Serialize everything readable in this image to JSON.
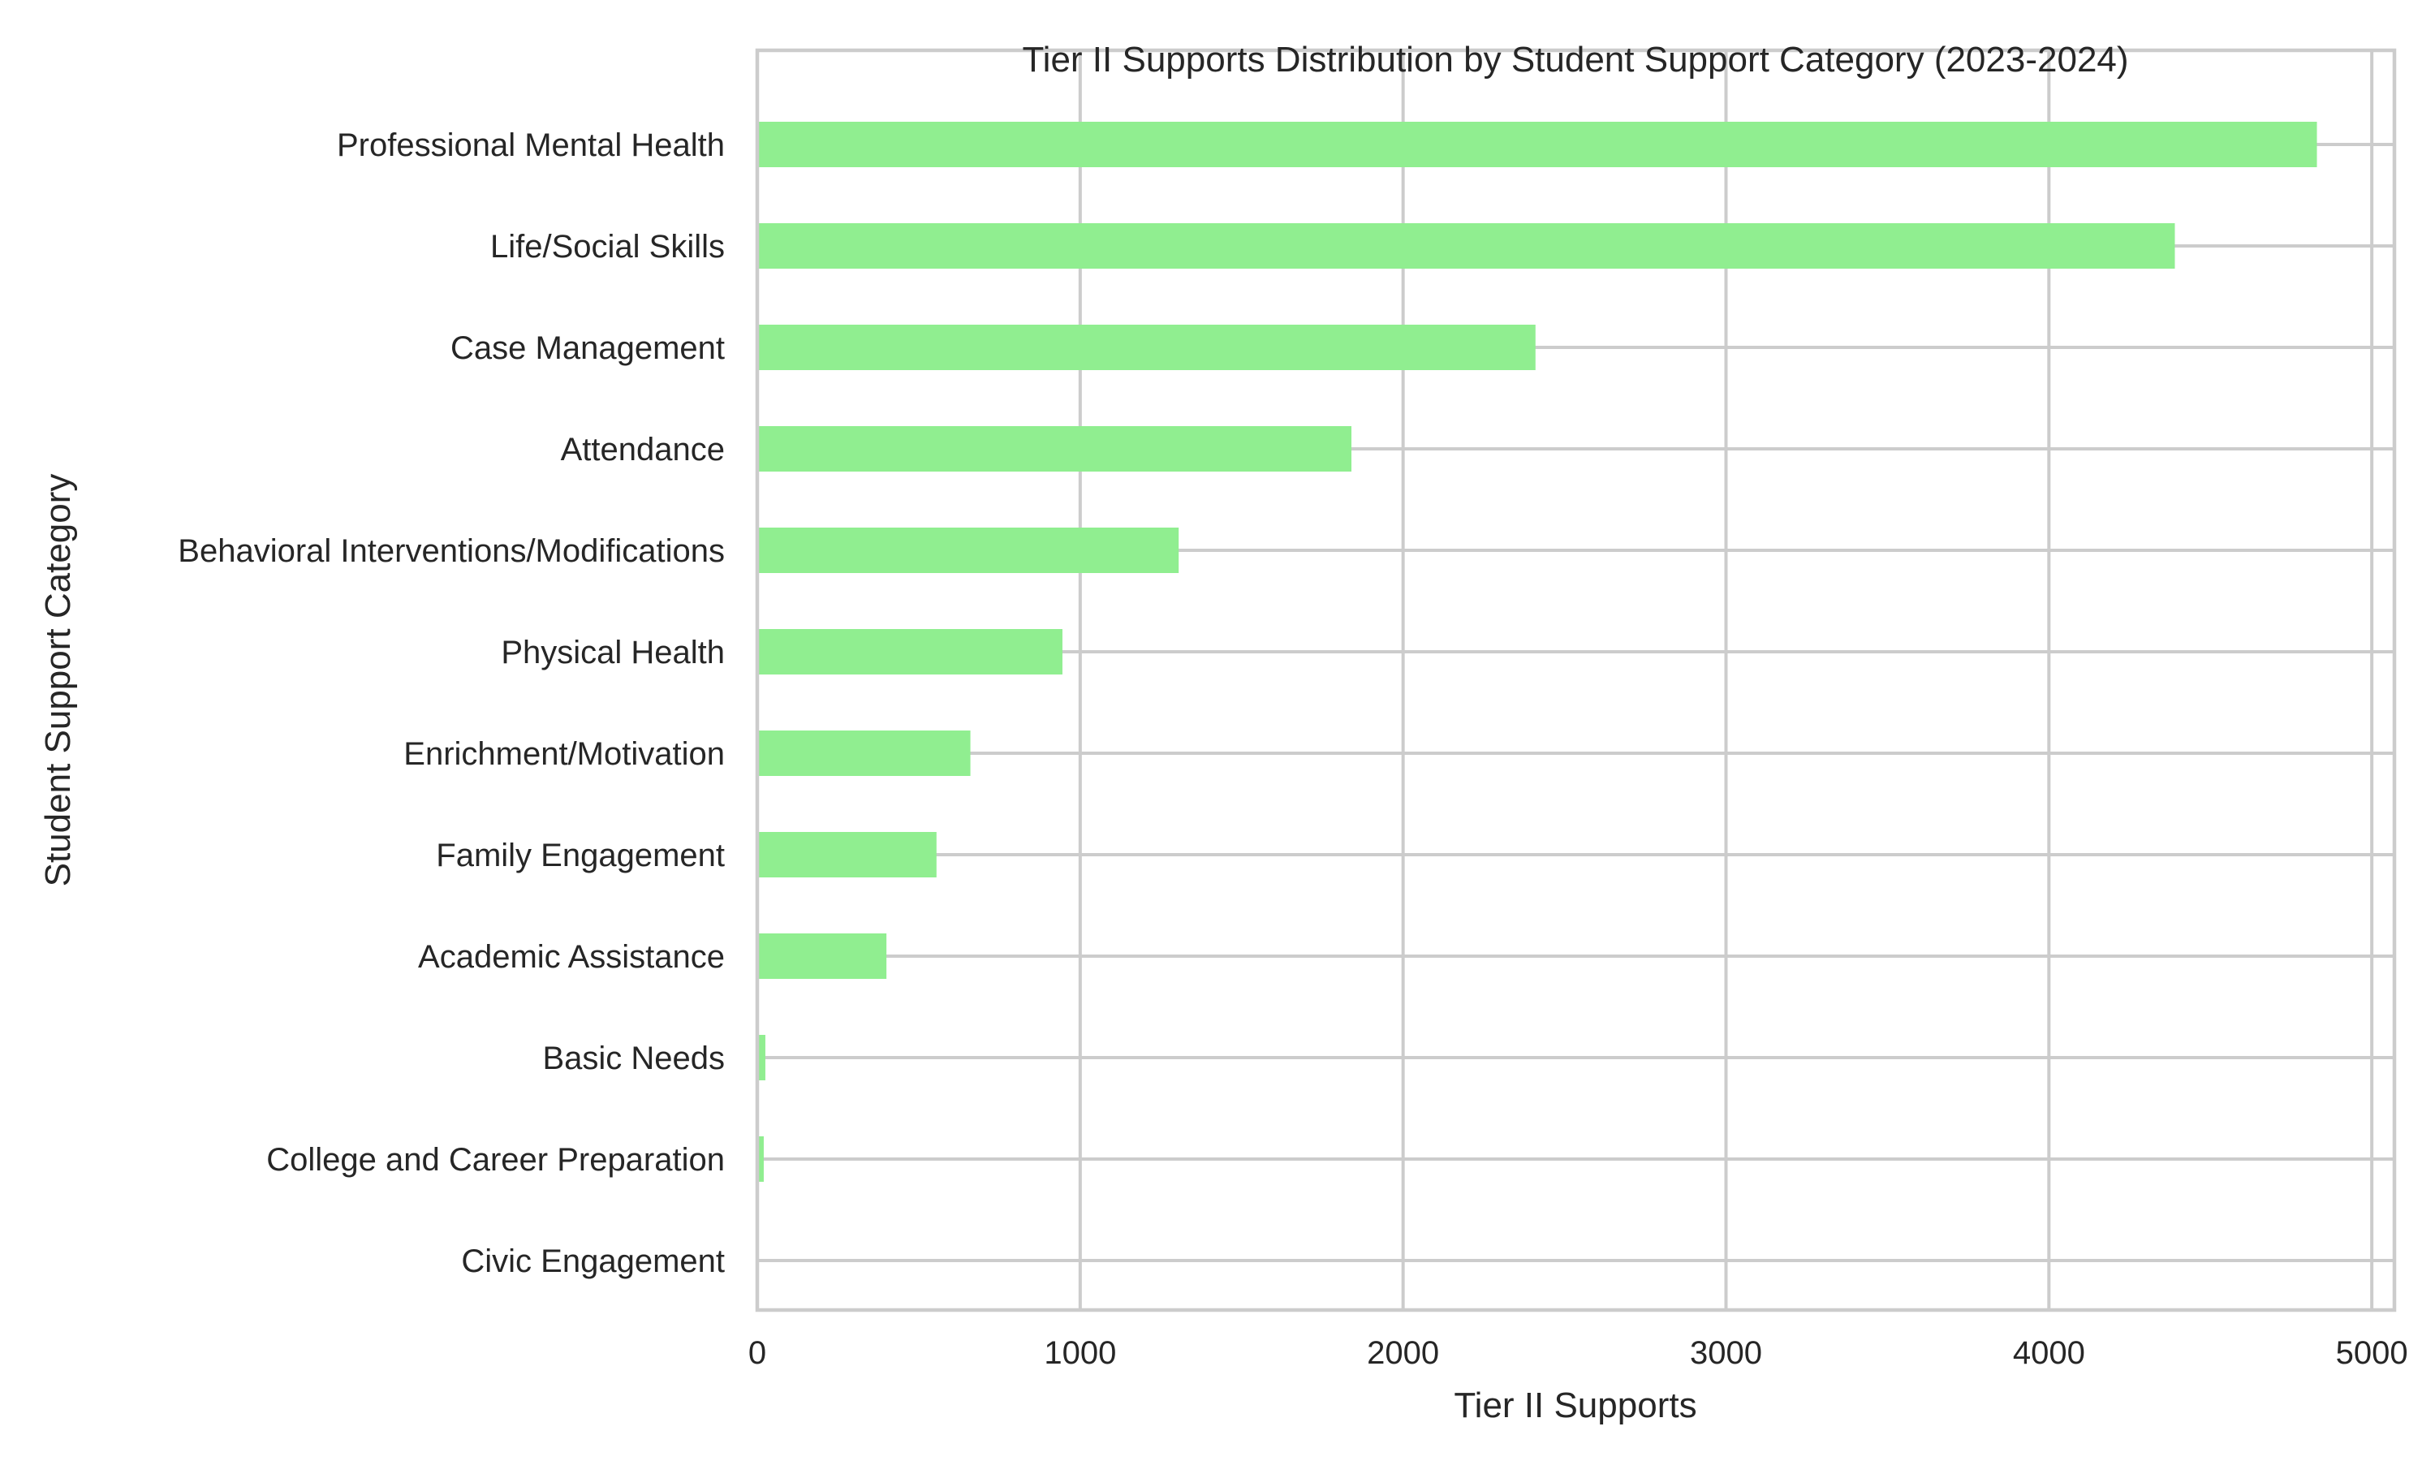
{
  "chart_data": {
    "type": "bar",
    "orientation": "horizontal",
    "title": "Tier II Supports Distribution by Student Support Category (2023-2024)",
    "xlabel": "Tier II Supports",
    "ylabel": "Student Support Category",
    "xlim": [
      0,
      5070
    ],
    "xticks": [
      0,
      1000,
      2000,
      3000,
      4000,
      5000
    ],
    "grid": true,
    "bar_color": "#90ee90",
    "categories": [
      "Professional Mental Health",
      "Life/Social Skills",
      "Case Management",
      "Attendance",
      "Behavioral Interventions/Modifications",
      "Physical Health",
      "Enrichment/Motivation",
      "Family Engagement",
      "Academic Assistance",
      "Basic Needs",
      "College and Career Preparation",
      "Civic Engagement"
    ],
    "values": [
      4830,
      4390,
      2410,
      1840,
      1305,
      945,
      660,
      555,
      400,
      25,
      20,
      3
    ]
  }
}
